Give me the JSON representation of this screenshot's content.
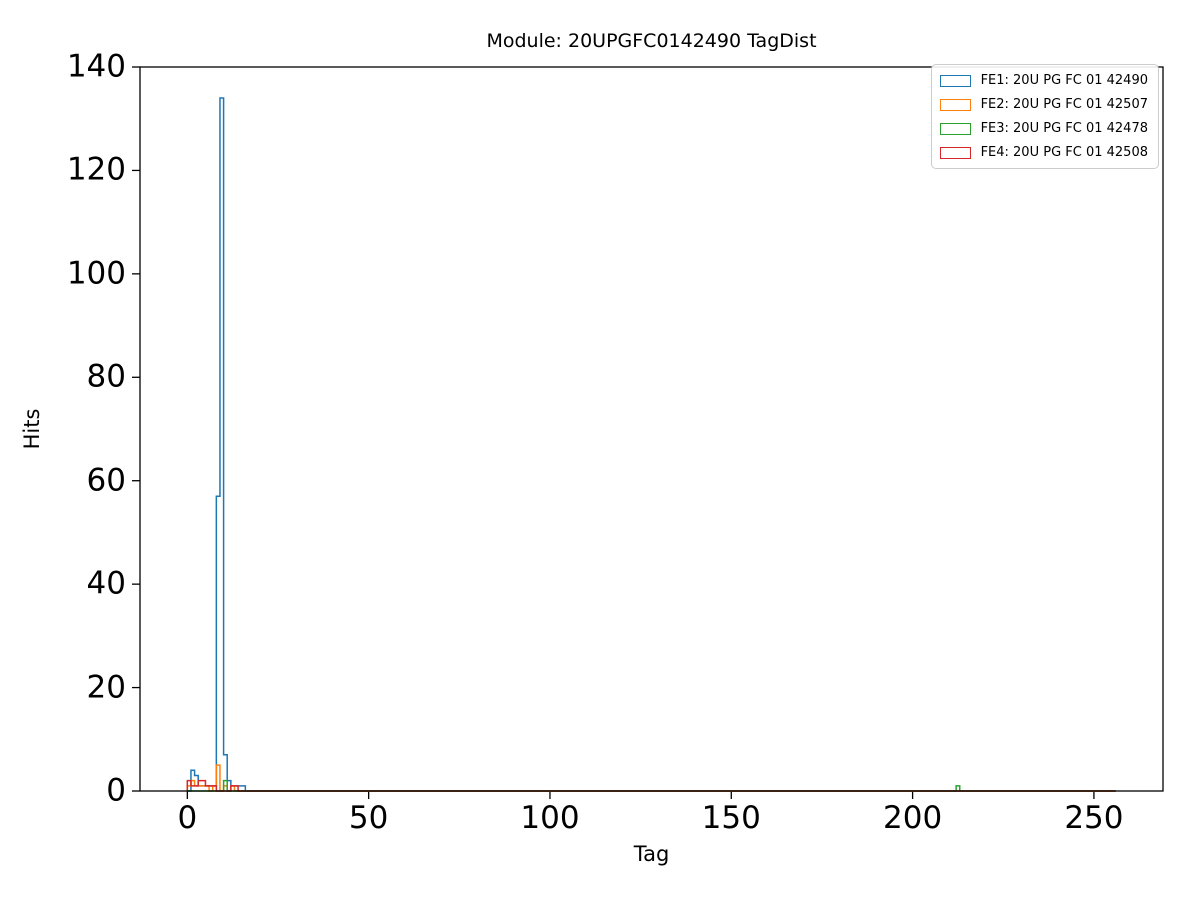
{
  "title": "Module: 20UPGFC0142490 TagDist",
  "chart_data": {
    "type": "step-histogram",
    "title": "Module: 20UPGFC0142490 TagDist",
    "xlabel": "Tag",
    "ylabel": "Hits",
    "xlim": [
      -13.05,
      269.05
    ],
    "ylim": [
      0,
      140
    ],
    "xticks": [
      0,
      50,
      100,
      150,
      200,
      250
    ],
    "yticks": [
      0,
      20,
      40,
      60,
      80,
      100,
      120,
      140
    ],
    "bin_start": 0,
    "bin_end": 256,
    "grid": false,
    "legend_position": "upper right",
    "frame_color": "#000000",
    "series": [
      {
        "name": "FE1: 20U PG FC 01 42490",
        "color": "#1f77b4",
        "hits": {
          "1": 4,
          "2": 3,
          "3": 1,
          "4": 1,
          "5": 1,
          "6": 1,
          "7": 1,
          "8": 57,
          "9": 134,
          "10": 7,
          "11": 2,
          "12": 1,
          "13": 1,
          "14": 1,
          "15": 1
        }
      },
      {
        "name": "FE2: 20U PG FC 01 42507",
        "color": "#ff7f0e",
        "hits": {
          "0": 1,
          "1": 2,
          "2": 1,
          "3": 1,
          "4": 1,
          "5": 1,
          "7": 1,
          "8": 5,
          "10": 1,
          "12": 1
        }
      },
      {
        "name": "FE3: 20U PG FC 01 42478",
        "color": "#2ca02c",
        "hits": {
          "10": 2,
          "212": 1
        }
      },
      {
        "name": "FE4: 20U PG FC 01 42508",
        "color": "#d62728",
        "hits": {
          "0": 2,
          "1": 1,
          "2": 1,
          "3": 2,
          "4": 2,
          "5": 1,
          "6": 1,
          "7": 1,
          "12": 1,
          "13": 1
        }
      }
    ]
  }
}
